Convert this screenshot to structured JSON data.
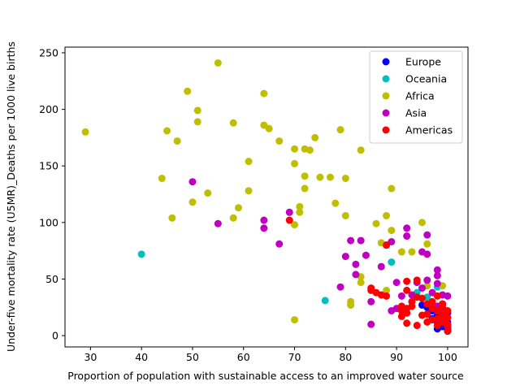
{
  "chart_data": {
    "type": "scatter",
    "title": "",
    "xlabel": "Proportion of population with sustainable access to an improved water source",
    "ylabel": "Under-five mortality rate (U5MR)_Deaths per 1000 live births",
    "xlim": [
      25,
      104
    ],
    "ylim": [
      -10,
      255
    ],
    "xticks": [
      30,
      40,
      50,
      60,
      70,
      80,
      90,
      100
    ],
    "yticks": [
      0,
      50,
      100,
      150,
      200,
      250
    ],
    "grid": false,
    "legend": "top-right",
    "series": [
      {
        "name": "Europe",
        "color": "#0000ff",
        "points": [
          [
            95,
            27
          ],
          [
            96,
            25
          ],
          [
            97,
            22
          ],
          [
            98,
            18
          ],
          [
            98,
            12
          ],
          [
            99,
            10
          ],
          [
            99,
            8
          ],
          [
            100,
            6
          ],
          [
            100,
            5
          ],
          [
            100,
            4
          ],
          [
            100,
            20
          ],
          [
            100,
            12
          ],
          [
            99,
            28
          ],
          [
            97,
            15
          ],
          [
            98,
            6
          ],
          [
            100,
            8
          ],
          [
            99,
            14
          ],
          [
            96,
            19
          ]
        ]
      },
      {
        "name": "Oceania",
        "color": "#00bfbf",
        "points": [
          [
            40,
            72
          ],
          [
            89,
            65
          ],
          [
            76,
            31
          ],
          [
            94,
            38
          ],
          [
            98,
            43
          ],
          [
            96,
            34
          ],
          [
            98,
            22
          ],
          [
            99,
            16
          ]
        ]
      },
      {
        "name": "Africa",
        "color": "#bfbf00",
        "points": [
          [
            29,
            180
          ],
          [
            45,
            181
          ],
          [
            47,
            172
          ],
          [
            49,
            216
          ],
          [
            51,
            199
          ],
          [
            51,
            189
          ],
          [
            55,
            241
          ],
          [
            58,
            188
          ],
          [
            64,
            214
          ],
          [
            64,
            186
          ],
          [
            65,
            183
          ],
          [
            67,
            172
          ],
          [
            70,
            165
          ],
          [
            70,
            152
          ],
          [
            72,
            165
          ],
          [
            73,
            164
          ],
          [
            74,
            175
          ],
          [
            79,
            182
          ],
          [
            83,
            164
          ],
          [
            61,
            154
          ],
          [
            44,
            139
          ],
          [
            50,
            118
          ],
          [
            53,
            126
          ],
          [
            46,
            104
          ],
          [
            58,
            104
          ],
          [
            59,
            113
          ],
          [
            61,
            128
          ],
          [
            71,
            114
          ],
          [
            71,
            109
          ],
          [
            72,
            141
          ],
          [
            72,
            130
          ],
          [
            75,
            140
          ],
          [
            77,
            140
          ],
          [
            78,
            117
          ],
          [
            80,
            139
          ],
          [
            80,
            106
          ],
          [
            70,
            98
          ],
          [
            86,
            99
          ],
          [
            88,
            106
          ],
          [
            89,
            130
          ],
          [
            89,
            93
          ],
          [
            91,
            74
          ],
          [
            93,
            74
          ],
          [
            95,
            100
          ],
          [
            96,
            81
          ],
          [
            87,
            82
          ],
          [
            83,
            52
          ],
          [
            83,
            47
          ],
          [
            81,
            30
          ],
          [
            81,
            27
          ],
          [
            88,
            40
          ],
          [
            99,
            44
          ],
          [
            70,
            14
          ],
          [
            96,
            44
          ]
        ]
      },
      {
        "name": "Asia",
        "color": "#bf00bf",
        "points": [
          [
            50,
            136
          ],
          [
            55,
            99
          ],
          [
            64,
            102
          ],
          [
            64,
            95
          ],
          [
            67,
            81
          ],
          [
            69,
            109
          ],
          [
            79,
            43
          ],
          [
            80,
            70
          ],
          [
            81,
            84
          ],
          [
            82,
            63
          ],
          [
            82,
            54
          ],
          [
            83,
            84
          ],
          [
            84,
            71
          ],
          [
            85,
            30
          ],
          [
            85,
            10
          ],
          [
            87,
            61
          ],
          [
            88,
            80
          ],
          [
            89,
            83
          ],
          [
            89,
            22
          ],
          [
            90,
            47
          ],
          [
            90,
            24
          ],
          [
            91,
            35
          ],
          [
            92,
            95
          ],
          [
            92,
            88
          ],
          [
            93,
            36
          ],
          [
            94,
            47
          ],
          [
            95,
            42
          ],
          [
            96,
            89
          ],
          [
            96,
            72
          ],
          [
            96,
            49
          ],
          [
            97,
            38
          ],
          [
            98,
            58
          ],
          [
            98,
            53
          ],
          [
            98,
            26
          ],
          [
            99,
            36
          ],
          [
            100,
            35
          ],
          [
            98,
            46
          ],
          [
            99,
            20
          ],
          [
            95,
            74
          ]
        ]
      },
      {
        "name": "Americas",
        "color": "#ff0000",
        "points": [
          [
            69,
            102
          ],
          [
            85,
            42
          ],
          [
            85,
            40
          ],
          [
            86,
            38
          ],
          [
            87,
            36
          ],
          [
            88,
            80
          ],
          [
            88,
            35
          ],
          [
            91,
            26
          ],
          [
            91,
            22
          ],
          [
            91,
            17
          ],
          [
            92,
            48
          ],
          [
            92,
            40
          ],
          [
            92,
            24
          ],
          [
            92,
            20
          ],
          [
            92,
            11
          ],
          [
            93,
            26
          ],
          [
            94,
            49
          ],
          [
            94,
            34
          ],
          [
            94,
            9
          ],
          [
            95,
            33
          ],
          [
            96,
            28
          ],
          [
            96,
            19
          ],
          [
            96,
            12
          ],
          [
            97,
            30
          ],
          [
            97,
            14
          ],
          [
            98,
            35
          ],
          [
            98,
            22
          ],
          [
            98,
            15
          ],
          [
            99,
            28
          ],
          [
            99,
            25
          ],
          [
            99,
            18
          ],
          [
            99,
            12
          ],
          [
            100,
            16
          ],
          [
            100,
            10
          ],
          [
            100,
            8
          ],
          [
            100,
            22
          ],
          [
            97,
            24
          ],
          [
            95,
            18
          ],
          [
            93,
            30
          ],
          [
            98,
            9
          ],
          [
            100,
            4
          ]
        ]
      }
    ]
  }
}
